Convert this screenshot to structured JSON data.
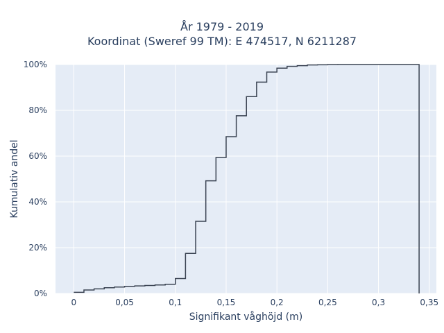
{
  "chart_data": {
    "type": "line",
    "subtype": "empirical-cdf-step",
    "title_lines": [
      "År 1979 - 2019",
      "Koordinat (Sweref 99 TM): E 474517, N 6211287"
    ],
    "xlabel": "Signifikant våghöjd (m)",
    "ylabel": "Kumulativ andel",
    "xlim": [
      -0.018,
      0.357
    ],
    "ylim": [
      0,
      100
    ],
    "x_ticks": [
      0,
      0.05,
      0.1,
      0.15,
      0.2,
      0.25,
      0.3,
      0.35
    ],
    "x_tick_labels": [
      "0",
      "0,05",
      "0,1",
      "0,15",
      "0,2",
      "0,25",
      "0,3",
      "0,35"
    ],
    "y_ticks": [
      0,
      20,
      40,
      60,
      80,
      100
    ],
    "y_tick_labels": [
      "0%",
      "20%",
      "40%",
      "60%",
      "80%",
      "100%"
    ],
    "grid": true,
    "colors": {
      "plot_bg": "#e5ecf6",
      "grid": "#ffffff",
      "line": "#3a4352",
      "text": "#2a3f5f"
    },
    "series": [
      {
        "x": [
          0,
          0.01,
          0.02,
          0.03,
          0.04,
          0.05,
          0.06,
          0.07,
          0.08,
          0.09,
          0.1,
          0.11,
          0.12,
          0.13,
          0.14,
          0.15,
          0.16,
          0.17,
          0.18,
          0.19,
          0.2,
          0.21,
          0.22,
          0.23,
          0.24,
          0.25,
          0.26,
          0.27,
          0.28,
          0.29,
          0.3,
          0.31,
          0.32,
          0.33,
          0.34,
          0.34
        ],
        "y": [
          0.5,
          1.5,
          2.0,
          2.5,
          2.8,
          3.1,
          3.3,
          3.5,
          3.7,
          4.0,
          6.5,
          17.5,
          31.5,
          49.2,
          59.4,
          68.5,
          77.6,
          86.0,
          92.3,
          96.7,
          98.4,
          99.2,
          99.5,
          99.8,
          99.9,
          99.95,
          100,
          100,
          100,
          100,
          100,
          100,
          100,
          100,
          100,
          0
        ]
      }
    ]
  }
}
